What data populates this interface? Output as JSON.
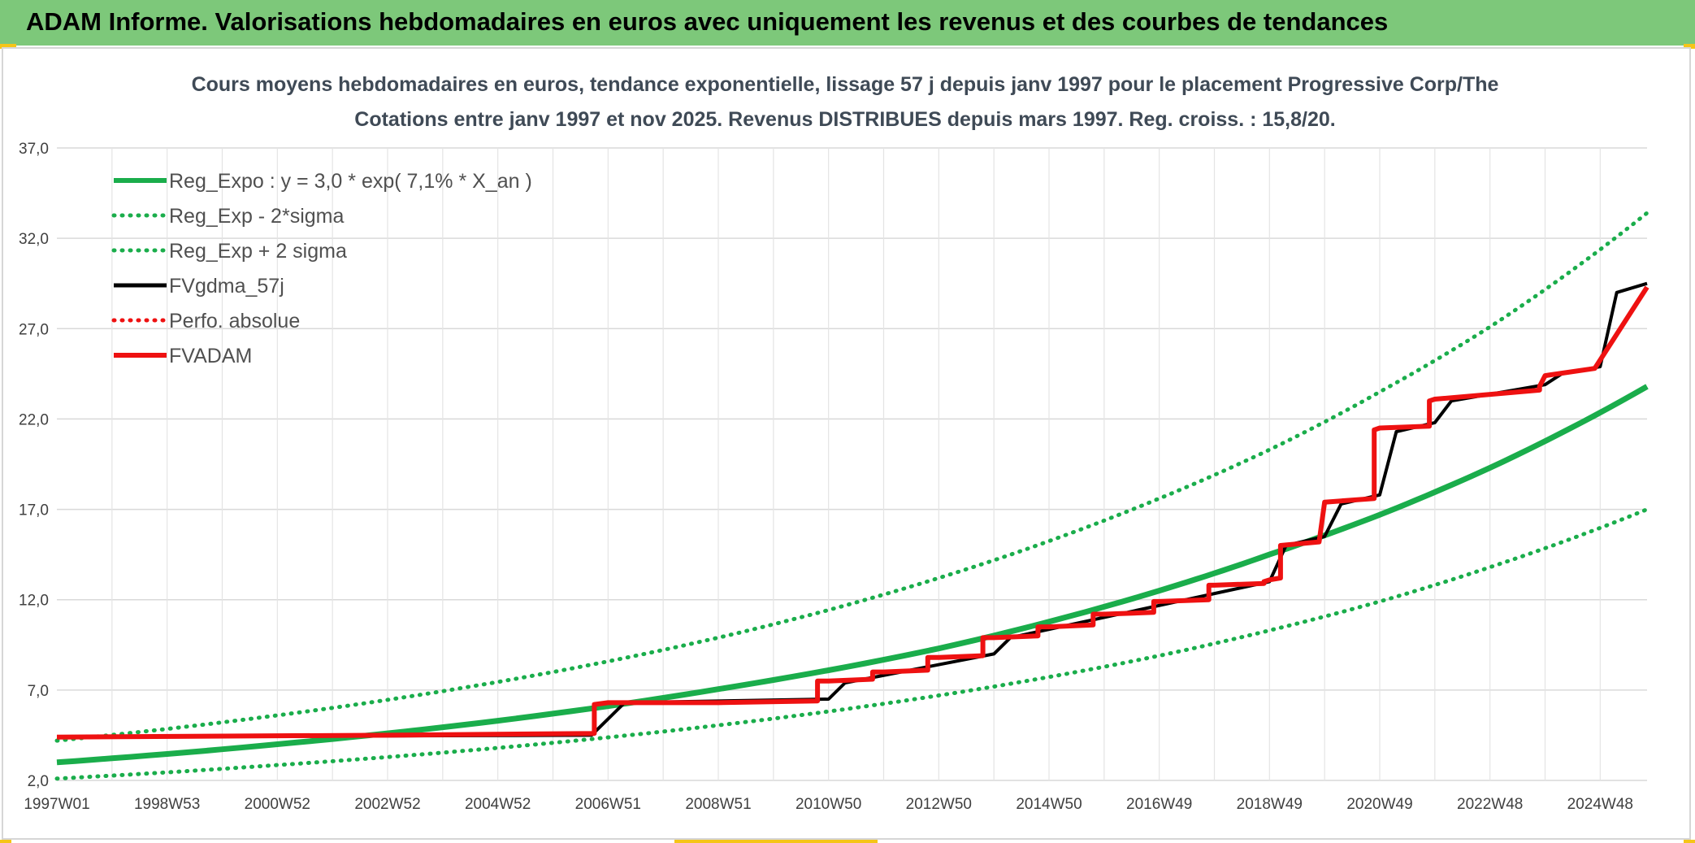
{
  "header": {
    "banner_text": "ADAM Informe. Valorisations hebdomadaires en euros avec uniquement les revenus et des courbes de tendances"
  },
  "colors": {
    "banner": "#7dc87a",
    "trend_green": "#1aad4b",
    "adam_red": "#ee1111",
    "gdma_black": "#000000",
    "corner_yellow": "#f5c518"
  },
  "chart_data": {
    "type": "line",
    "title": "Cours moyens hebdomadaires en euros, tendance exponentielle, lissage 57 j depuis janv 1997 pour le placement Progressive Corp/The",
    "subtitle": "Cotations entre janv 1997 et nov 2025. Revenus DISTRIBUES depuis mars 1997. Reg. croiss. : 15,8/20.",
    "xlabel": "",
    "ylabel": "",
    "ylim": [
      2.0,
      37.0
    ],
    "xlim": [
      1997.0,
      2025.85
    ],
    "yticks": [
      "2,0",
      "7,0",
      "12,0",
      "17,0",
      "22,0",
      "27,0",
      "32,0",
      "37,0"
    ],
    "xtick_labels": [
      {
        "label": "1997W01",
        "x": 1997.0
      },
      {
        "label": "1998W53",
        "x": 1999.0
      },
      {
        "label": "2000W52",
        "x": 2001.0
      },
      {
        "label": "2002W52",
        "x": 2003.0
      },
      {
        "label": "2004W52",
        "x": 2005.0
      },
      {
        "label": "2006W51",
        "x": 2007.0
      },
      {
        "label": "2008W51",
        "x": 2009.0
      },
      {
        "label": "2010W50",
        "x": 2011.0
      },
      {
        "label": "2012W50",
        "x": 2013.0
      },
      {
        "label": "2014W50",
        "x": 2015.0
      },
      {
        "label": "2016W49",
        "x": 2017.0
      },
      {
        "label": "2018W49",
        "x": 2019.0
      },
      {
        "label": "2020W49",
        "x": 2021.0
      },
      {
        "label": "2022W48",
        "x": 2023.0
      },
      {
        "label": "2024W48",
        "x": 2025.0
      }
    ],
    "grid": true,
    "legend_position": "top-left",
    "series": [
      {
        "name": "Reg_Expo : y = 3,0 * exp( 7,1% *  X_an )",
        "style": "solid",
        "color": "#1aad4b",
        "x": [
          1997,
          2001,
          2005,
          2009,
          2013,
          2017,
          2019,
          2021,
          2023,
          2025.85
        ],
        "y": [
          3.0,
          4.0,
          5.3,
          7.05,
          9.3,
          12.5,
          14.5,
          16.7,
          19.3,
          23.8
        ]
      },
      {
        "name": "Reg_Exp - 2*sigma",
        "style": "dotted",
        "color": "#1aad4b",
        "x": [
          1997,
          2001,
          2005,
          2009,
          2013,
          2017,
          2019,
          2021,
          2023,
          2025.85
        ],
        "y": [
          2.1,
          2.85,
          3.8,
          5.05,
          6.7,
          8.9,
          10.3,
          11.9,
          13.8,
          17.0
        ]
      },
      {
        "name": "Reg_Exp + 2 sigma",
        "style": "dotted",
        "color": "#1aad4b",
        "x": [
          1997,
          2001,
          2005,
          2009,
          2013,
          2017,
          2019,
          2021,
          2023,
          2025.85
        ],
        "y": [
          4.2,
          5.6,
          7.45,
          9.9,
          13.2,
          17.6,
          20.3,
          23.5,
          27.1,
          33.4
        ]
      },
      {
        "name": "FVgdma_57j",
        "style": "solid",
        "color": "#000000",
        "x": [
          1997,
          2006.7,
          2007.3,
          2011.0,
          2011.3,
          2014.0,
          2014.3,
          2019.0,
          2019.3,
          2020.0,
          2020.3,
          2021.0,
          2021.3,
          2022.0,
          2022.3,
          2024.0,
          2024.3,
          2025.0,
          2025.3,
          2025.85
        ],
        "y": [
          4.4,
          4.5,
          6.3,
          6.5,
          7.4,
          9.0,
          9.9,
          13.0,
          15.0,
          15.5,
          17.3,
          17.8,
          21.3,
          21.8,
          23.0,
          23.9,
          24.5,
          24.9,
          29.0,
          29.5
        ]
      },
      {
        "name": "Perfo. absolue",
        "style": "dotted",
        "color": "#ee1111",
        "x": [],
        "y": []
      },
      {
        "name": "FVADAM",
        "style": "solid",
        "color": "#ee1111",
        "x": [
          1997.0,
          2003.0,
          2006.75,
          2006.75,
          2007.0,
          2009.0,
          2010.8,
          2010.8,
          2011.0,
          2011.8,
          2011.8,
          2012.0,
          2012.8,
          2012.8,
          2013.0,
          2013.8,
          2013.8,
          2014.0,
          2014.8,
          2014.8,
          2015.0,
          2015.8,
          2015.8,
          2016.0,
          2016.9,
          2016.9,
          2017.0,
          2017.9,
          2017.9,
          2018.0,
          2018.9,
          2018.9,
          2019.0,
          2019.2,
          2019.2,
          2019.9,
          2019.9,
          2020.0,
          2020.9,
          2020.9,
          2021.0,
          2021.9,
          2021.9,
          2022.0,
          2023.9,
          2023.9,
          2024.0,
          2024.9,
          2024.9,
          2025.85
        ],
        "y": [
          4.4,
          4.5,
          4.6,
          6.2,
          6.3,
          6.3,
          6.4,
          7.5,
          7.5,
          7.6,
          8.0,
          8.0,
          8.1,
          8.8,
          8.8,
          8.9,
          9.9,
          9.9,
          10.0,
          10.5,
          10.5,
          10.6,
          11.2,
          11.2,
          11.3,
          11.9,
          11.9,
          12.0,
          12.8,
          12.8,
          12.9,
          13.0,
          13.1,
          13.2,
          15.0,
          15.2,
          15.2,
          17.4,
          17.6,
          21.4,
          21.5,
          21.6,
          23.0,
          23.1,
          23.6,
          23.8,
          24.4,
          24.8,
          24.8,
          29.3
        ]
      }
    ]
  }
}
